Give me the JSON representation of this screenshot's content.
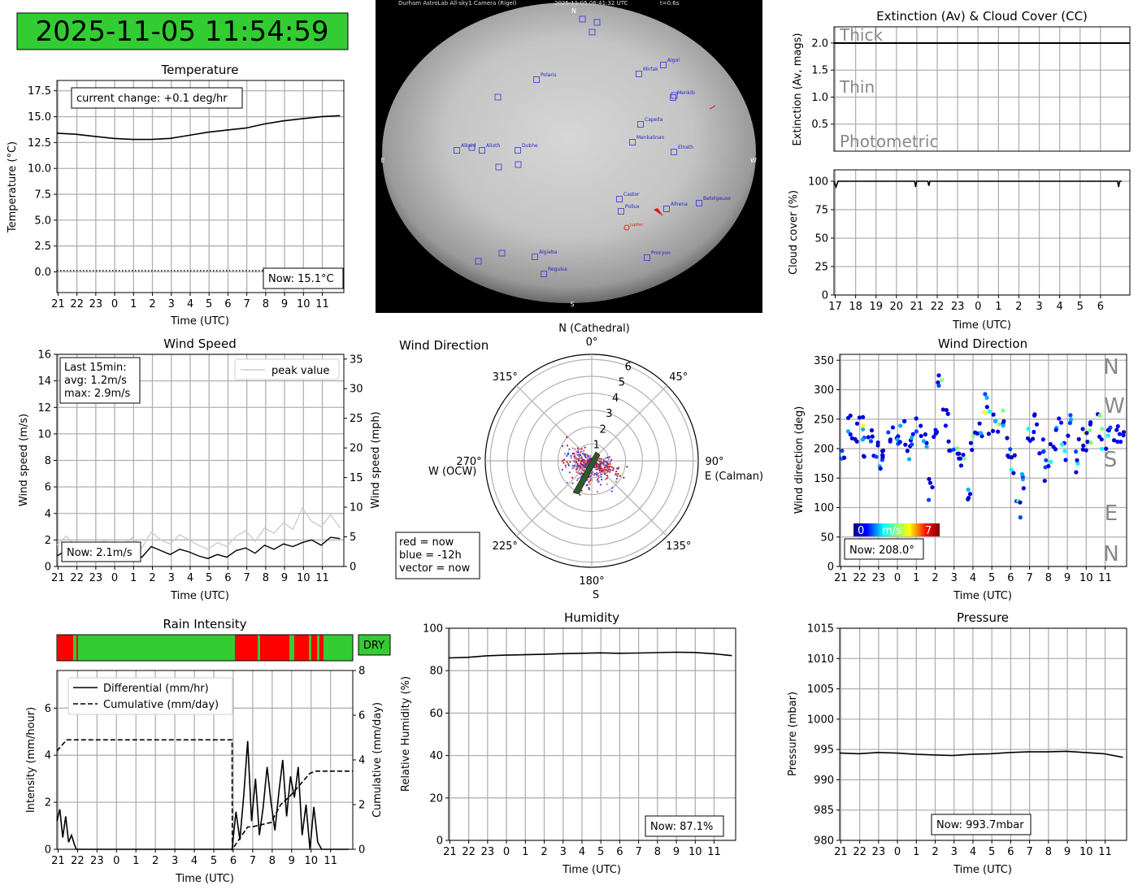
{
  "clock": {
    "text": "2025-11-05 11:54:59",
    "bg": "#33cc33"
  },
  "time_ticks_24": [
    "21",
    "22",
    "23",
    "0",
    "1",
    "2",
    "3",
    "4",
    "5",
    "6",
    "7",
    "8",
    "9",
    "10",
    "11"
  ],
  "time_ticks_cloud": [
    "17",
    "18",
    "19",
    "20",
    "21",
    "22",
    "23",
    "0",
    "1",
    "2",
    "3",
    "4",
    "5",
    "6"
  ],
  "temperature": {
    "title": "Temperature",
    "xlabel": "Time (UTC)",
    "ylabel": "Temperature (°C)",
    "yticks": [
      "0.0",
      "2.5",
      "5.0",
      "7.5",
      "10.0",
      "12.5",
      "15.0",
      "17.5"
    ],
    "change": "current change: +0.1 deg/hr",
    "now": "Now: 15.1°C"
  },
  "camera": {
    "header": "Durham AstroLab All-sky1 Camera (Rigel)",
    "timestamp": "2025-11-05 06:41:32 UTC",
    "exposure": "t=0.6s",
    "compass": {
      "n": "N",
      "s": "S",
      "e": "E",
      "w": "W"
    },
    "stars": [
      "Polaris",
      "Mirfak",
      "Algol",
      "Menkib",
      "Capella",
      "Menkalinan",
      "Elnath",
      "Alkaid",
      "Alioth",
      "Dubhe",
      "Castor",
      "Pollux",
      "Alhena",
      "Betelgeuse",
      "Algieba",
      "Regulus",
      "Procyon"
    ],
    "planet": "Jupiter"
  },
  "extinction": {
    "title": "Extinction (Av) & Cloud Cover (CC)",
    "ylabel": "Extinction (Av, mags)",
    "yticks": [
      "0.5",
      "1.0",
      "1.5",
      "2.0"
    ],
    "levels": [
      "Thick",
      "Thin",
      "Photometric"
    ]
  },
  "cloud": {
    "ylabel": "Cloud cover (%)",
    "xlabel": "Time (UTC)",
    "yticks": [
      "0",
      "25",
      "50",
      "75",
      "100"
    ]
  },
  "wind_speed": {
    "title": "Wind Speed",
    "xlabel": "Time (UTC)",
    "ylabel": "Wind speed (m/s)",
    "ylabel2": "Wind speed (mph)",
    "yticks": [
      "0",
      "2",
      "4",
      "6",
      "8",
      "10",
      "12",
      "14",
      "16"
    ],
    "yticks2": [
      "0",
      "5",
      "10",
      "15",
      "20",
      "25",
      "30",
      "35"
    ],
    "legend": "peak value",
    "stats": [
      "Last 15min:",
      "avg: 1.2m/s",
      "max: 2.9m/s"
    ],
    "now": "Now: 2.1m/s"
  },
  "wind_polar": {
    "title": "Wind Direction",
    "north": "N (Cathedral)",
    "south": "S",
    "east": "E (Calman)",
    "west": "W (OCW)",
    "angles": [
      "0°",
      "45°",
      "90°",
      "135°",
      "180°",
      "225°",
      "270°",
      "315°"
    ],
    "rings": [
      "1",
      "2",
      "3",
      "4",
      "5",
      "6"
    ],
    "legend": [
      "red = now",
      "blue = -12h",
      "vector = now"
    ]
  },
  "wind_dir": {
    "title": "Wind Direction",
    "xlabel": "Time (UTC)",
    "ylabel": "Wind direction (deg)",
    "yticks": [
      "0",
      "50",
      "100",
      "150",
      "200",
      "250",
      "300",
      "350"
    ],
    "compass": [
      "N",
      "W",
      "S",
      "E",
      "N"
    ],
    "cbar": {
      "min": "0",
      "label": "m/s",
      "max": "7"
    },
    "now": "Now: 208.0°"
  },
  "rain": {
    "title": "Rain Intensity",
    "xlabel": "Time (UTC)",
    "ylabel": "Intensity (mm/hour)",
    "ylabel2": "Cumulative (mm/day)",
    "yticks": [
      "0",
      "2",
      "4",
      "6"
    ],
    "yticks2": [
      "0",
      "2",
      "4",
      "6",
      "8"
    ],
    "legend": [
      "Differential (mm/hr)",
      "Cumulative (mm/day)"
    ],
    "status": "DRY"
  },
  "humidity": {
    "title": "Humidity",
    "xlabel": "Time (UTC)",
    "ylabel": "Relative Humidity (%)",
    "yticks": [
      "0",
      "20",
      "40",
      "60",
      "80",
      "100"
    ],
    "now": "Now: 87.1%"
  },
  "pressure": {
    "title": "Pressure",
    "xlabel": "Time (UTC)",
    "ylabel": "Pressure (mbar)",
    "yticks": [
      "980",
      "985",
      "990",
      "995",
      "1000",
      "1005",
      "1010",
      "1015"
    ],
    "now": "Now: 993.7mbar"
  },
  "chart_data": [
    {
      "type": "line",
      "name": "temperature",
      "x": [
        0,
        1,
        2,
        3,
        4,
        5,
        6,
        7,
        8,
        9,
        10,
        11,
        12,
        13,
        14,
        15
      ],
      "values": [
        13.4,
        13.3,
        13.1,
        12.9,
        12.8,
        12.8,
        12.9,
        13.2,
        13.5,
        13.7,
        13.9,
        14.3,
        14.6,
        14.8,
        15.0,
        15.1
      ],
      "ylim": [
        -2,
        18.5
      ],
      "xlim": [
        0,
        15.2
      ],
      "unit": "°C"
    },
    {
      "type": "line",
      "name": "extinction",
      "values": [
        2.0,
        2.0,
        2.0,
        2.0
      ],
      "ylim": [
        0,
        2.3
      ]
    },
    {
      "type": "line",
      "name": "cloud_cover",
      "x": [
        0,
        0.1,
        0.2,
        3,
        3.95,
        4,
        4.05,
        4.6,
        4.65,
        4.7,
        12,
        13,
        13.9,
        13.95,
        14,
        14.1
      ],
      "values": [
        100,
        95,
        100,
        100,
        100,
        95,
        100,
        100,
        96,
        100,
        100,
        100,
        100,
        95,
        100,
        100
      ],
      "ylim": [
        0,
        110
      ],
      "xlim": [
        0,
        14.5
      ],
      "unit": "%"
    },
    {
      "type": "line",
      "name": "wind_speed_avg",
      "x": [
        0,
        0.5,
        1,
        1.5,
        2,
        2.5,
        3,
        3.5,
        4,
        4.5,
        5,
        5.5,
        6,
        6.5,
        7,
        7.5,
        8,
        8.5,
        9,
        9.5,
        10,
        10.5,
        11,
        11.5,
        12,
        12.5,
        13,
        13.5,
        14,
        14.5,
        15
      ],
      "values": [
        0.8,
        1.2,
        1.0,
        0.9,
        0.7,
        1.1,
        0.6,
        0.8,
        1.0,
        0.7,
        1.5,
        1.2,
        0.9,
        1.3,
        1.1,
        0.8,
        0.6,
        0.9,
        0.7,
        1.2,
        1.4,
        1.0,
        1.6,
        1.3,
        1.7,
        1.5,
        1.8,
        2.0,
        1.6,
        2.2,
        2.1
      ],
      "ylim": [
        0,
        16
      ],
      "xlim": [
        0,
        15.2
      ],
      "unit": "m/s"
    },
    {
      "type": "line",
      "name": "wind_speed_peak",
      "x": [
        0,
        0.5,
        1,
        1.5,
        2,
        2.5,
        3,
        3.5,
        4,
        4.5,
        5,
        5.5,
        6,
        6.5,
        7,
        7.5,
        8,
        8.5,
        9,
        9.5,
        10,
        10.5,
        11,
        11.5,
        12,
        12.5,
        13,
        13.5,
        14,
        14.5,
        15
      ],
      "values": [
        1.6,
        2.3,
        1.5,
        1.8,
        1.2,
        2.0,
        1.3,
        1.6,
        2.2,
        1.4,
        2.6,
        2.0,
        1.7,
        2.4,
        2.0,
        1.6,
        1.3,
        1.8,
        1.5,
        2.3,
        2.7,
        1.9,
        2.9,
        2.5,
        3.3,
        2.8,
        4.4,
        3.4,
        3.0,
        3.9,
        2.9
      ],
      "ylim": [
        0,
        16
      ],
      "unit": "m/s"
    },
    {
      "type": "scatter",
      "name": "wind_direction",
      "points": [
        [
          0.2,
          190
        ],
        [
          0.5,
          240
        ],
        [
          0.8,
          225
        ],
        [
          1.1,
          250
        ],
        [
          1.3,
          200
        ],
        [
          1.6,
          215
        ],
        [
          1.9,
          195
        ],
        [
          2.2,
          170
        ],
        [
          2.4,
          205
        ],
        [
          2.7,
          225
        ],
        [
          3.0,
          215
        ],
        [
          3.3,
          230
        ],
        [
          3.6,
          200
        ],
        [
          3.9,
          225
        ],
        [
          4.2,
          235
        ],
        [
          4.5,
          215
        ],
        [
          4.8,
          130
        ],
        [
          5.1,
          220
        ],
        [
          5.3,
          310
        ],
        [
          5.6,
          250
        ],
        [
          5.9,
          210
        ],
        [
          6.2,
          195
        ],
        [
          6.5,
          185
        ],
        [
          6.8,
          120
        ],
        [
          7.1,
          215
        ],
        [
          7.4,
          230
        ],
        [
          7.7,
          275
        ],
        [
          8.0,
          245
        ],
        [
          8.3,
          230
        ],
        [
          8.6,
          255
        ],
        [
          8.9,
          205
        ],
        [
          9.2,
          175
        ],
        [
          9.5,
          95
        ],
        [
          9.8,
          150
        ],
        [
          10.1,
          220
        ],
        [
          10.4,
          240
        ],
        [
          10.7,
          210
        ],
        [
          11.0,
          165
        ],
        [
          11.3,
          195
        ],
        [
          11.6,
          235
        ],
        [
          11.9,
          200
        ],
        [
          12.2,
          240
        ],
        [
          12.5,
          175
        ],
        [
          12.8,
          215
        ],
        [
          13.1,
          210
        ],
        [
          13.4,
          225
        ],
        [
          13.7,
          240
        ],
        [
          14.0,
          215
        ],
        [
          14.3,
          225
        ],
        [
          14.6,
          220
        ],
        [
          14.9,
          208
        ]
      ],
      "ylim": [
        0,
        360
      ],
      "xlim": [
        0,
        15.2
      ],
      "unit": "deg"
    },
    {
      "type": "line",
      "name": "rain_differential",
      "x": [
        0,
        0.15,
        0.3,
        0.45,
        0.6,
        0.75,
        0.9,
        1.0,
        1.5,
        9.0,
        9.2,
        9.4,
        9.6,
        9.8,
        10.0,
        10.2,
        10.4,
        10.6,
        10.8,
        11.0,
        11.2,
        11.4,
        11.6,
        11.8,
        12.0,
        12.2,
        12.4,
        12.6,
        12.8,
        13.0,
        13.2,
        13.4,
        13.6,
        13.8,
        14.0,
        15.0
      ],
      "values": [
        1.2,
        1.7,
        0.5,
        1.4,
        0.3,
        0.6,
        0.2,
        0,
        0,
        0,
        1.6,
        0.4,
        2.3,
        4.6,
        1.2,
        3.0,
        0.6,
        1.8,
        3.5,
        2.0,
        0.8,
        2.4,
        3.8,
        1.4,
        3.1,
        2.2,
        3.5,
        0.6,
        1.9,
        0,
        1.8,
        0.3,
        0,
        0,
        0,
        0
      ],
      "ylim": [
        0,
        7.6
      ],
      "xlim": [
        0,
        15.2
      ],
      "unit": "mm/hr"
    },
    {
      "type": "line",
      "name": "rain_cumulative",
      "x": [
        0,
        0.3,
        0.5,
        9.0,
        9.01,
        9.4,
        9.8,
        10.0,
        11.0,
        11.5,
        12.0,
        12.4,
        12.8,
        13.0,
        13.3,
        14.0,
        15.2
      ],
      "values": [
        4.4,
        4.7,
        4.9,
        4.9,
        0,
        0.5,
        1.0,
        1.0,
        1.2,
        2.0,
        2.4,
        2.8,
        3.2,
        3.4,
        3.5,
        3.5,
        3.5
      ],
      "ylim": [
        0,
        8
      ],
      "unit": "mm/day"
    },
    {
      "type": "line",
      "name": "humidity",
      "x": [
        0,
        1,
        2,
        3,
        4,
        5,
        6,
        7,
        8,
        9,
        10,
        11,
        12,
        13,
        14,
        15
      ],
      "values": [
        86.0,
        86.3,
        87.0,
        87.3,
        87.5,
        87.7,
        88.0,
        88.2,
        88.4,
        88.2,
        88.3,
        88.5,
        88.7,
        88.6,
        88.0,
        87.1
      ],
      "ylim": [
        0,
        100
      ],
      "xlim": [
        0,
        15.2
      ],
      "unit": "%"
    },
    {
      "type": "line",
      "name": "pressure",
      "x": [
        0,
        1,
        2,
        3,
        4,
        5,
        6,
        7,
        8,
        9,
        10,
        11,
        12,
        13,
        14,
        15
      ],
      "values": [
        994.4,
        994.3,
        994.5,
        994.4,
        994.2,
        994.1,
        994.0,
        994.2,
        994.3,
        994.5,
        994.6,
        994.6,
        994.7,
        994.5,
        994.3,
        993.7
      ],
      "ylim": [
        980,
        1015
      ],
      "xlim": [
        0,
        15.2
      ],
      "unit": "mbar"
    }
  ]
}
